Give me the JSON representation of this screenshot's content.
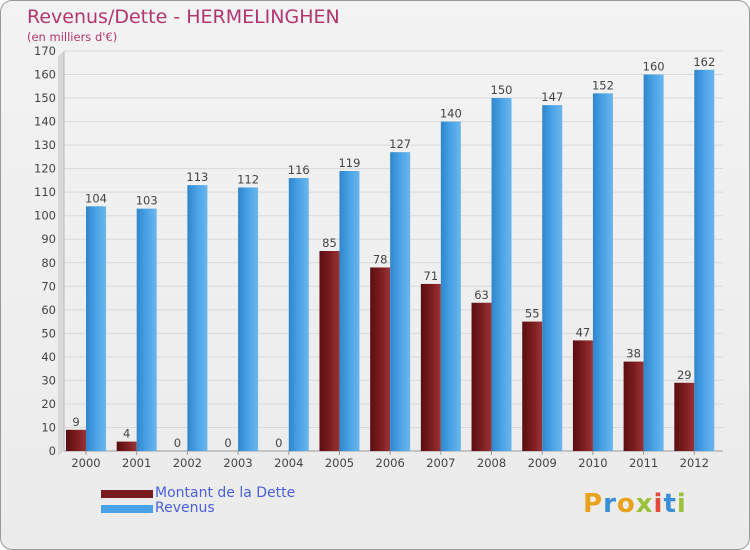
{
  "title": "Revenus/Dette - HERMELINGHEN",
  "subtitle": "(en milliers d'€)",
  "logo_text": "Proxiti",
  "colors": {
    "dette": "#7a1c1f",
    "revenus": "#4aa3e6",
    "title": "#b4346e",
    "legend_text": "#4a5fe0"
  },
  "chart_data": {
    "type": "bar",
    "categories": [
      "2000",
      "2001",
      "2002",
      "2003",
      "2004",
      "2005",
      "2006",
      "2007",
      "2008",
      "2009",
      "2010",
      "2011",
      "2012"
    ],
    "series": [
      {
        "name": "Montant de la Dette",
        "values": [
          9,
          4,
          0,
          0,
          0,
          85,
          78,
          71,
          63,
          55,
          47,
          38,
          29
        ]
      },
      {
        "name": "Revenus",
        "values": [
          104,
          103,
          113,
          112,
          116,
          119,
          127,
          140,
          150,
          147,
          152,
          160,
          162
        ]
      }
    ],
    "ylim": [
      0,
      170
    ],
    "yticks": [
      0,
      10,
      20,
      30,
      40,
      50,
      60,
      70,
      80,
      90,
      100,
      110,
      120,
      130,
      140,
      150,
      160,
      170
    ],
    "grid": true,
    "legend": "bottom-left"
  }
}
